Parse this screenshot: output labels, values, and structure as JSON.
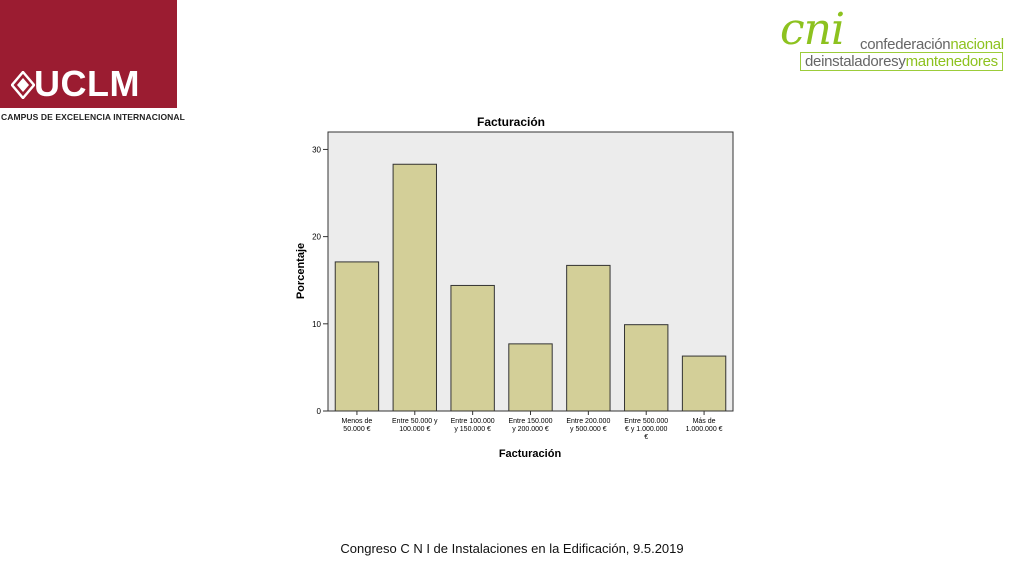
{
  "header": {
    "uclm": {
      "logo_text": "UCLM",
      "tagline": "CAMPUS DE EXCELENCIA INTERNACIONAL"
    },
    "cni": {
      "mark": "cni",
      "line1_a": "confederación",
      "line1_b": "nacional",
      "line2_a": "deinstaladoresy",
      "line2_b": "mantenedores"
    }
  },
  "chart_data": {
    "type": "bar",
    "title": "Facturación",
    "xlabel": "Facturación",
    "ylabel": "Porcentaje",
    "categories": [
      [
        "Menos de",
        "50.000 €"
      ],
      [
        "Entre 50.000 y",
        "100.000 €"
      ],
      [
        "Entre 100.000",
        "y 150.000 €"
      ],
      [
        "Entre 150.000",
        "y 200.000 €"
      ],
      [
        "Entre 200.000",
        "y 500.000 €"
      ],
      [
        "Entre 500.000",
        "€ y 1.000.000",
        "€"
      ],
      [
        "Más de",
        "1.000.000 €"
      ]
    ],
    "values": [
      17.1,
      28.3,
      14.4,
      7.7,
      16.7,
      9.9,
      6.3
    ],
    "ylim": [
      0,
      32
    ],
    "yticks": [
      0,
      10,
      20,
      30
    ],
    "grid": false,
    "bar_color": "#d3cf98",
    "plot_background": "#ececec"
  },
  "footer": {
    "text": "Congreso C N I de Instalaciones en la Edificación, 9.5.2019"
  }
}
